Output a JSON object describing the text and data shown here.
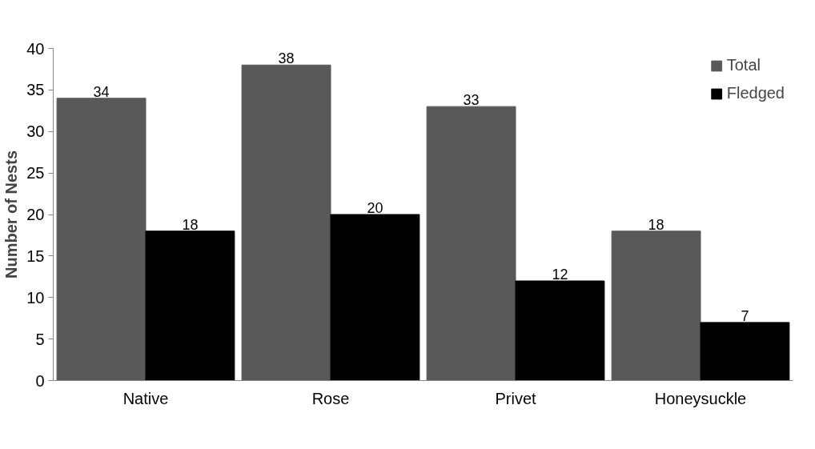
{
  "chart_data": {
    "type": "bar",
    "ylabel": "Number of Nests",
    "categories": [
      "Native",
      "Rose",
      "Privet",
      "Honeysuckle"
    ],
    "series": [
      {
        "name": "Total",
        "color": "#595959",
        "values": [
          34,
          38,
          33,
          18
        ]
      },
      {
        "name": "Fledged",
        "color": "#000000",
        "values": [
          18,
          20,
          12,
          7
        ]
      }
    ],
    "ylim": [
      0,
      40
    ],
    "yticks": [
      0,
      5,
      10,
      15,
      20,
      25,
      30,
      35,
      40
    ],
    "data_labels": true,
    "grid": false,
    "legend": "top right"
  }
}
